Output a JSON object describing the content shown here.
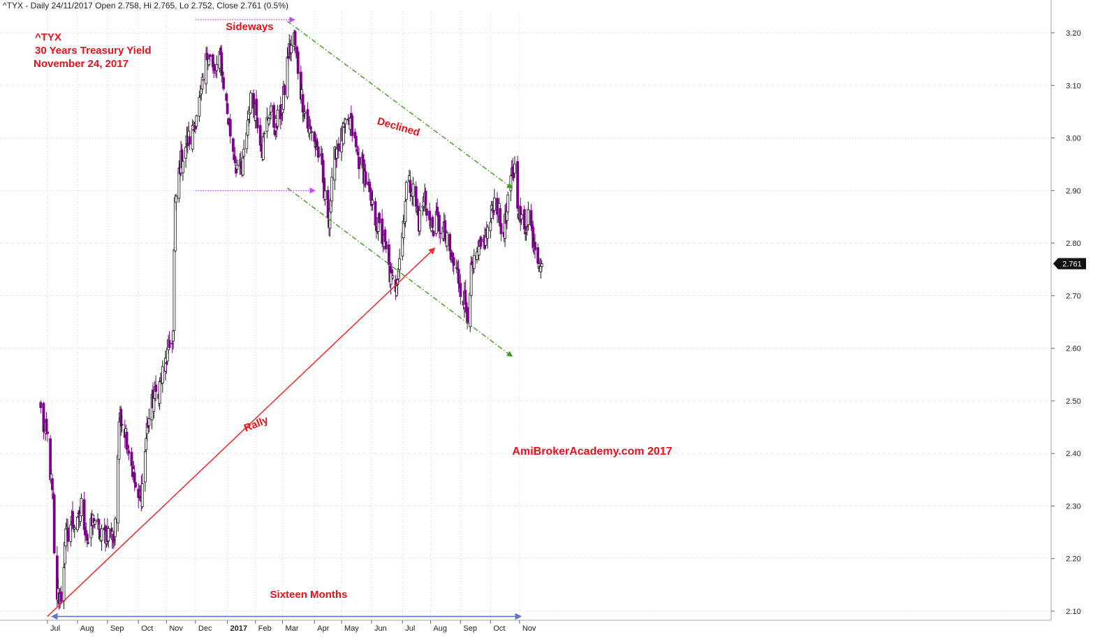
{
  "header": {
    "info": "^TYX - Daily 24/11/2017 Open 2.758, Hi 2.765, Lo 2.752, Close 2.761 (0.5%)"
  },
  "chart_data": {
    "type": "candlestick",
    "title_lines": [
      "^TYX",
      " 30 Years Treasury Yield",
      "November 24, 2017"
    ],
    "watermark": "AmiBrokerAcademy.com 2017",
    "xlabel": "",
    "ylabel": "",
    "ylim": [
      2.085,
      3.25
    ],
    "y_ticks": [
      2.1,
      2.2,
      2.3,
      2.4,
      2.5,
      2.6,
      2.7,
      2.8,
      2.9,
      3.0,
      3.1,
      3.2
    ],
    "y_tick_labels": [
      "2.10",
      "2.20",
      "2.30",
      "2.40",
      "2.50",
      "2.60",
      "2.70",
      "2.80",
      "2.90",
      "3.00",
      "3.10",
      "3.20"
    ],
    "x_range": [
      "2016-06-24",
      "2017-11-30"
    ],
    "x_ticks": [
      {
        "date": "2016-07-01",
        "label": "Jul",
        "bold": false
      },
      {
        "date": "2016-08-01",
        "label": "Aug",
        "bold": false
      },
      {
        "date": "2016-09-01",
        "label": "Sep",
        "bold": false
      },
      {
        "date": "2016-10-03",
        "label": "Oct",
        "bold": false
      },
      {
        "date": "2016-11-01",
        "label": "Nov",
        "bold": false
      },
      {
        "date": "2016-12-01",
        "label": "Dec",
        "bold": false
      },
      {
        "date": "2017-01-03",
        "label": "2017",
        "bold": true
      },
      {
        "date": "2017-02-01",
        "label": "Feb",
        "bold": false
      },
      {
        "date": "2017-03-01",
        "label": "Mar",
        "bold": false
      },
      {
        "date": "2017-04-03",
        "label": "Apr",
        "bold": false
      },
      {
        "date": "2017-05-01",
        "label": "May",
        "bold": false
      },
      {
        "date": "2017-06-01",
        "label": "Jun",
        "bold": false
      },
      {
        "date": "2017-07-03",
        "label": "Jul",
        "bold": false
      },
      {
        "date": "2017-08-01",
        "label": "Aug",
        "bold": false
      },
      {
        "date": "2017-09-01",
        "label": "Sep",
        "bold": false
      },
      {
        "date": "2017-10-02",
        "label": "Oct",
        "bold": false
      },
      {
        "date": "2017-11-01",
        "label": "Nov",
        "bold": false
      }
    ],
    "grid": true,
    "colors": {
      "up": "#ffffff",
      "down": "#7d008c",
      "wick": "#111111",
      "grid": "#c8cfd8",
      "text": "#e8101a"
    },
    "last_price": {
      "value": 2.761,
      "label": "2.761"
    },
    "path_points": [
      [
        "2016-06-24",
        2.48
      ],
      [
        "2016-06-28",
        2.44
      ],
      [
        "2016-07-01",
        2.43
      ],
      [
        "2016-07-07",
        2.3
      ],
      [
        "2016-07-08",
        2.2
      ],
      [
        "2016-07-11",
        2.13
      ],
      [
        "2016-07-15",
        2.13
      ],
      [
        "2016-07-20",
        2.24
      ],
      [
        "2016-07-26",
        2.27
      ],
      [
        "2016-08-01",
        2.26
      ],
      [
        "2016-08-05",
        2.3
      ],
      [
        "2016-08-12",
        2.23
      ],
      [
        "2016-08-18",
        2.28
      ],
      [
        "2016-08-25",
        2.24
      ],
      [
        "2016-09-01",
        2.25
      ],
      [
        "2016-09-08",
        2.24
      ],
      [
        "2016-09-12",
        2.4
      ],
      [
        "2016-09-14",
        2.48
      ],
      [
        "2016-09-20",
        2.44
      ],
      [
        "2016-09-26",
        2.38
      ],
      [
        "2016-10-03",
        2.3
      ],
      [
        "2016-10-07",
        2.34
      ],
      [
        "2016-10-12",
        2.45
      ],
      [
        "2016-10-18",
        2.5
      ],
      [
        "2016-10-25",
        2.53
      ],
      [
        "2016-11-01",
        2.58
      ],
      [
        "2016-11-08",
        2.63
      ],
      [
        "2016-11-09",
        2.78
      ],
      [
        "2016-11-10",
        2.87
      ],
      [
        "2016-11-15",
        2.95
      ],
      [
        "2016-11-22",
        2.99
      ],
      [
        "2016-11-28",
        3.01
      ],
      [
        "2016-12-02",
        3.05
      ],
      [
        "2016-12-07",
        3.08
      ],
      [
        "2016-12-14",
        3.17
      ],
      [
        "2016-12-20",
        3.12
      ],
      [
        "2016-12-27",
        3.15
      ],
      [
        "2017-01-05",
        3.02
      ],
      [
        "2017-01-12",
        2.95
      ],
      [
        "2017-01-18",
        2.93
      ],
      [
        "2017-01-26",
        3.07
      ],
      [
        "2017-02-01",
        3.06
      ],
      [
        "2017-02-08",
        2.98
      ],
      [
        "2017-02-15",
        3.05
      ],
      [
        "2017-02-22",
        3.02
      ],
      [
        "2017-03-01",
        3.06
      ],
      [
        "2017-03-07",
        3.16
      ],
      [
        "2017-03-13",
        3.19
      ],
      [
        "2017-03-20",
        3.09
      ],
      [
        "2017-03-27",
        3.02
      ],
      [
        "2017-04-03",
        3.0
      ],
      [
        "2017-04-10",
        2.95
      ],
      [
        "2017-04-13",
        2.89
      ],
      [
        "2017-04-18",
        2.85
      ],
      [
        "2017-04-25",
        2.98
      ],
      [
        "2017-05-01",
        3.0
      ],
      [
        "2017-05-10",
        3.03
      ],
      [
        "2017-05-17",
        2.97
      ],
      [
        "2017-05-25",
        2.93
      ],
      [
        "2017-06-01",
        2.87
      ],
      [
        "2017-06-08",
        2.83
      ],
      [
        "2017-06-14",
        2.8
      ],
      [
        "2017-06-21",
        2.73
      ],
      [
        "2017-06-26",
        2.72
      ],
      [
        "2017-07-03",
        2.82
      ],
      [
        "2017-07-07",
        2.91
      ],
      [
        "2017-07-13",
        2.91
      ],
      [
        "2017-07-20",
        2.84
      ],
      [
        "2017-07-26",
        2.89
      ],
      [
        "2017-08-01",
        2.83
      ],
      [
        "2017-08-08",
        2.84
      ],
      [
        "2017-08-15",
        2.82
      ],
      [
        "2017-08-22",
        2.77
      ],
      [
        "2017-08-29",
        2.74
      ],
      [
        "2017-09-05",
        2.69
      ],
      [
        "2017-09-08",
        2.67
      ],
      [
        "2017-09-12",
        2.74
      ],
      [
        "2017-09-18",
        2.77
      ],
      [
        "2017-09-25",
        2.8
      ],
      [
        "2017-10-02",
        2.84
      ],
      [
        "2017-10-05",
        2.88
      ],
      [
        "2017-10-10",
        2.87
      ],
      [
        "2017-10-13",
        2.82
      ],
      [
        "2017-10-18",
        2.84
      ],
      [
        "2017-10-24",
        2.93
      ],
      [
        "2017-10-27",
        2.94
      ],
      [
        "2017-11-01",
        2.85
      ],
      [
        "2017-11-06",
        2.82
      ],
      [
        "2017-11-10",
        2.86
      ],
      [
        "2017-11-15",
        2.81
      ],
      [
        "2017-11-20",
        2.78
      ],
      [
        "2017-11-24",
        2.761
      ]
    ],
    "annotations": [
      {
        "name": "rally-trendline",
        "kind": "arrow",
        "from": [
          "2016-07-01",
          2.09
        ],
        "to": [
          "2017-08-05",
          2.79
        ],
        "color": "#f03030",
        "dash": false
      },
      {
        "name": "sideways-top-arrow",
        "kind": "arrow",
        "from": [
          "2016-12-01",
          3.225
        ],
        "to": [
          "2017-03-13",
          3.225
        ],
        "color": "#cc44ff",
        "dash": "dot"
      },
      {
        "name": "sideways-bottom-arrow",
        "kind": "arrow",
        "from": [
          "2016-12-01",
          2.9
        ],
        "to": [
          "2017-04-03",
          2.9
        ],
        "color": "#cc44ff",
        "dash": "dot"
      },
      {
        "name": "declined-upper-line",
        "kind": "arrow",
        "from": [
          "2017-03-06",
          3.222
        ],
        "to": [
          "2017-10-24",
          2.905
        ],
        "color": "#3a9a1a",
        "dash": "dashdot"
      },
      {
        "name": "declined-lower-line",
        "kind": "arrow",
        "from": [
          "2017-03-06",
          2.905
        ],
        "to": [
          "2017-10-24",
          2.585
        ],
        "color": "#3a9a1a",
        "dash": "dashdot"
      },
      {
        "name": "sixteen-months-span",
        "kind": "double-arrow",
        "from": [
          "2016-07-06",
          2.09
        ],
        "to": [
          "2017-11-02",
          2.09
        ],
        "color": "#5b78c8",
        "dash": false
      }
    ],
    "labels": [
      {
        "name": "sideways-label",
        "text": "Sideways",
        "at": [
          "2017-01-26",
          3.205
        ],
        "rotate": 0
      },
      {
        "name": "declined-label",
        "text": "Declined",
        "at": [
          "2017-06-28",
          3.015
        ],
        "rotate": 16
      },
      {
        "name": "rally-label",
        "text": "Rally",
        "at": [
          "2017-02-03",
          2.45
        ],
        "rotate": -22
      },
      {
        "name": "sixteen-months-label",
        "text": "Sixteen Months",
        "at": [
          "2017-03-28",
          2.125
        ],
        "rotate": 0
      }
    ]
  }
}
